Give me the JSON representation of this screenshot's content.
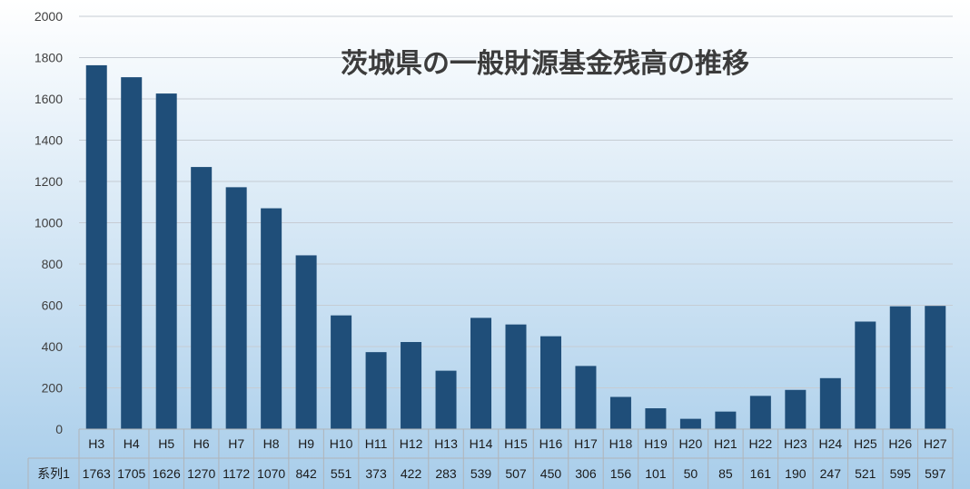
{
  "chart_data": {
    "type": "bar",
    "title": "茨城県の一般財源基金残高の推移",
    "categories": [
      "H3",
      "H4",
      "H5",
      "H6",
      "H7",
      "H8",
      "H9",
      "H10",
      "H11",
      "H12",
      "H13",
      "H14",
      "H15",
      "H16",
      "H17",
      "H18",
      "H19",
      "H20",
      "H21",
      "H22",
      "H23",
      "H24",
      "H25",
      "H26",
      "H27"
    ],
    "series": [
      {
        "name": "系列1",
        "values": [
          1763,
          1705,
          1626,
          1270,
          1172,
          1070,
          842,
          551,
          373,
          422,
          283,
          539,
          507,
          450,
          306,
          156,
          101,
          50,
          85,
          161,
          190,
          247,
          521,
          595,
          597
        ],
        "color": "#1f4e79"
      }
    ],
    "ylim": [
      0,
      2000
    ],
    "yticks": [
      "0",
      "200",
      "400",
      "600",
      "800",
      "1000",
      "1200",
      "1400",
      "1600",
      "1800",
      "2000"
    ],
    "grid": true,
    "legend": "data-table"
  },
  "colors": {
    "bar": "#1f4e79",
    "bg_top": "#ffffff",
    "bg_bottom": "#a8cdea",
    "grid": "#c6ccd3"
  }
}
